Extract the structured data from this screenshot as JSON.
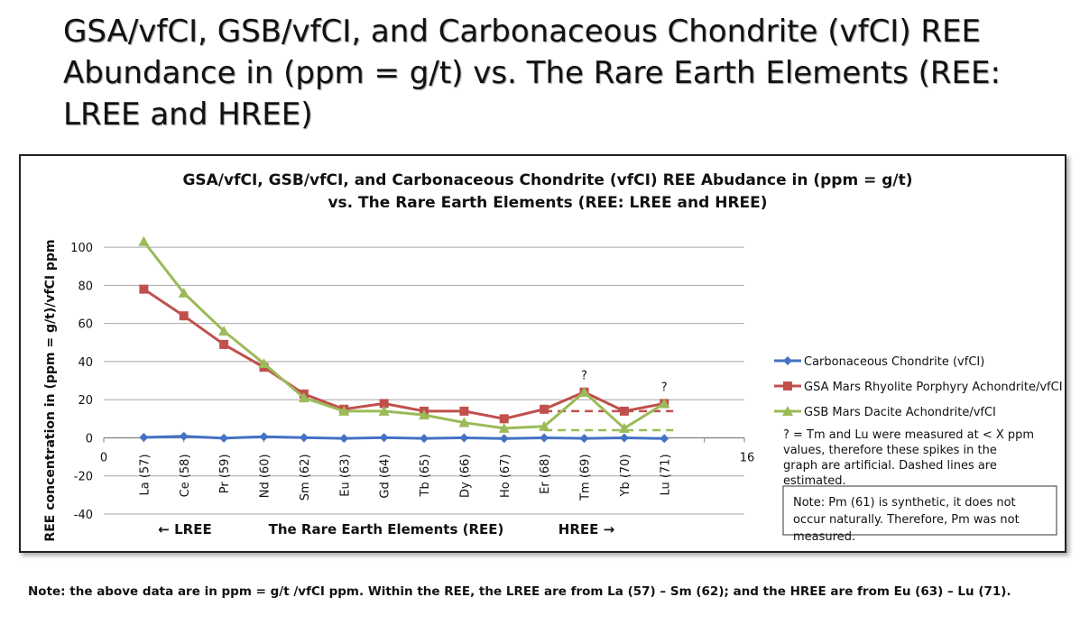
{
  "slide": {
    "title": "GSA/vfCI, GSB/vfCI, and Carbonaceous Chondrite (vfCI) REE Abundance in (ppm = g/t) vs. The Rare Earth Elements (REE: LREE and HREE)",
    "footnote": "Note: the above data are in ppm = g/t /vfCI ppm. Within the REE, the LREE are from La (57) – Sm (62); and the HREE are from Eu (63) – Lu (71)."
  },
  "chart_data": {
    "type": "line",
    "title_line1": "GSA/vfCI, GSB/vfCI, and Carbonaceous  Chondrite (vfCI) REE Abudance in (ppm = g/t)",
    "title_line2": "vs. The Rare Earth Elements (REE: LREE and HREE)",
    "ylabel": "REE concentration in (ppm = g/t)/vfCI ppm",
    "xlabel": "The Rare Earth Elements (REE)",
    "lree_label": "← LREE",
    "hree_label": "HREE →",
    "x_axis_min_label": "0",
    "x_axis_max_label": "16",
    "ylim": [
      -40,
      110
    ],
    "yticks": [
      -40,
      -20,
      0,
      20,
      40,
      60,
      80,
      100
    ],
    "xlim": [
      0,
      16
    ],
    "grid": true,
    "legend_position": "right",
    "categories": [
      "La (57)",
      "Ce (58)",
      "Pr (59)",
      "Nd (60)",
      "Sm (62)",
      "Eu (63)",
      "Gd (64)",
      "Tb (65)",
      "Dy (66)",
      "Ho (67)",
      "Er (68)",
      "Tm (69)",
      "Yb (70)",
      "Lu (71)"
    ],
    "x": [
      1,
      2,
      3,
      4,
      5,
      6,
      7,
      8,
      9,
      10,
      11,
      12,
      13,
      14
    ],
    "series": [
      {
        "name": "Carbonaceous Chondrite (vfCI)",
        "color": "#4472c4",
        "marker": "diamond",
        "values": [
          0.2,
          0.8,
          -0.2,
          0.6,
          0.1,
          -0.3,
          0.1,
          -0.3,
          0.0,
          -0.4,
          0.0,
          -0.3,
          0.0,
          -0.4
        ]
      },
      {
        "name": "GSA Mars Rhyolite Porphyry Achondrite/vfCI",
        "color": "#c0504d",
        "marker": "square",
        "values": [
          78,
          64,
          49,
          37,
          23,
          15,
          18,
          14,
          14,
          10,
          15,
          24,
          14,
          18
        ]
      },
      {
        "name": "GSB Mars Dacite Achondrite/vfCI",
        "color": "#9bbb59",
        "marker": "triangle",
        "values": [
          103,
          76,
          56,
          39,
          21,
          14,
          14,
          12,
          8,
          5,
          6,
          24,
          5,
          18
        ]
      }
    ],
    "estimates": [
      {
        "series": "GSA Mars Rhyolite Porphyry Achondrite/vfCI",
        "from_x": 11,
        "to_x": 14,
        "y": 14,
        "color": "#c0504d",
        "style": "dashed"
      },
      {
        "series": "GSB Mars Dacite Achondrite/vfCI",
        "from_x": 11,
        "to_x": 14,
        "y": 4,
        "color": "#9bbb59",
        "style": "dashed"
      }
    ],
    "question_marks": [
      {
        "text": "?",
        "x": 12,
        "y": 24
      },
      {
        "text": "?",
        "x": 14,
        "y": 18
      }
    ],
    "annotation_note": "? = Tm and Lu were measured at < X ppm values, therefore these spikes in the graph are artificial. Dashed lines are estimated.",
    "boxed_note": "Note: Pm (61) is synthetic, it does not occur naturally. Therefore, Pm was not measured."
  }
}
